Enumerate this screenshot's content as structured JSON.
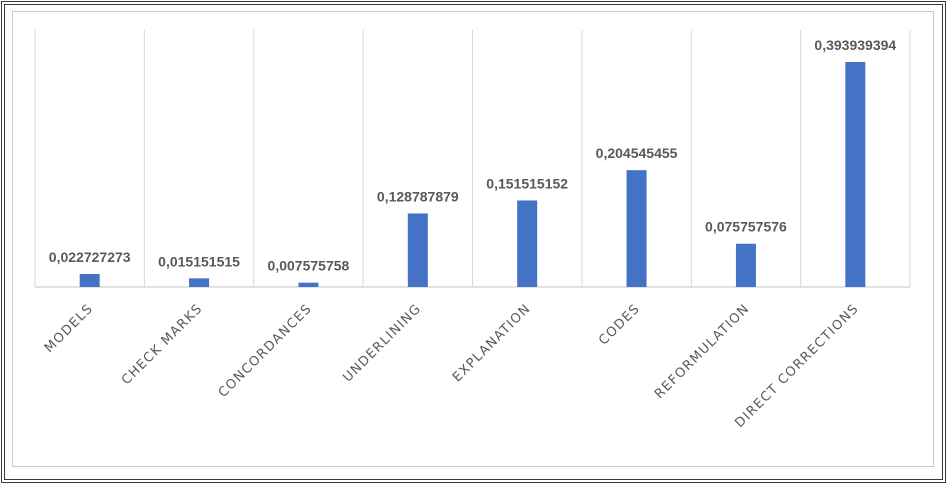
{
  "chart_data": {
    "type": "bar",
    "categories": [
      "MODELS",
      "CHECK MARKS",
      "CONCORDANCES",
      "UNDERLINING",
      "EXPLANATION",
      "CODES",
      "REFORMULATION",
      "DIRECT CORRECTIONS"
    ],
    "values": [
      0.022727273,
      0.015151515,
      0.007575758,
      0.128787879,
      0.151515152,
      0.204545455,
      0.075757576,
      0.393939394
    ],
    "data_labels": [
      "0,022727273",
      "0,015151515",
      "0,007575758",
      "0,128787879",
      "0,151515152",
      "0,204545455",
      "0,075757576",
      "0,393939394"
    ],
    "title": "",
    "xlabel": "",
    "ylabel": "",
    "ylim": [
      0,
      0.45
    ],
    "grid": "vertical category separators",
    "legend": "none",
    "bar_color": "#4472C4",
    "label_color": "#595959",
    "gridline_color": "#D9D9D9"
  }
}
